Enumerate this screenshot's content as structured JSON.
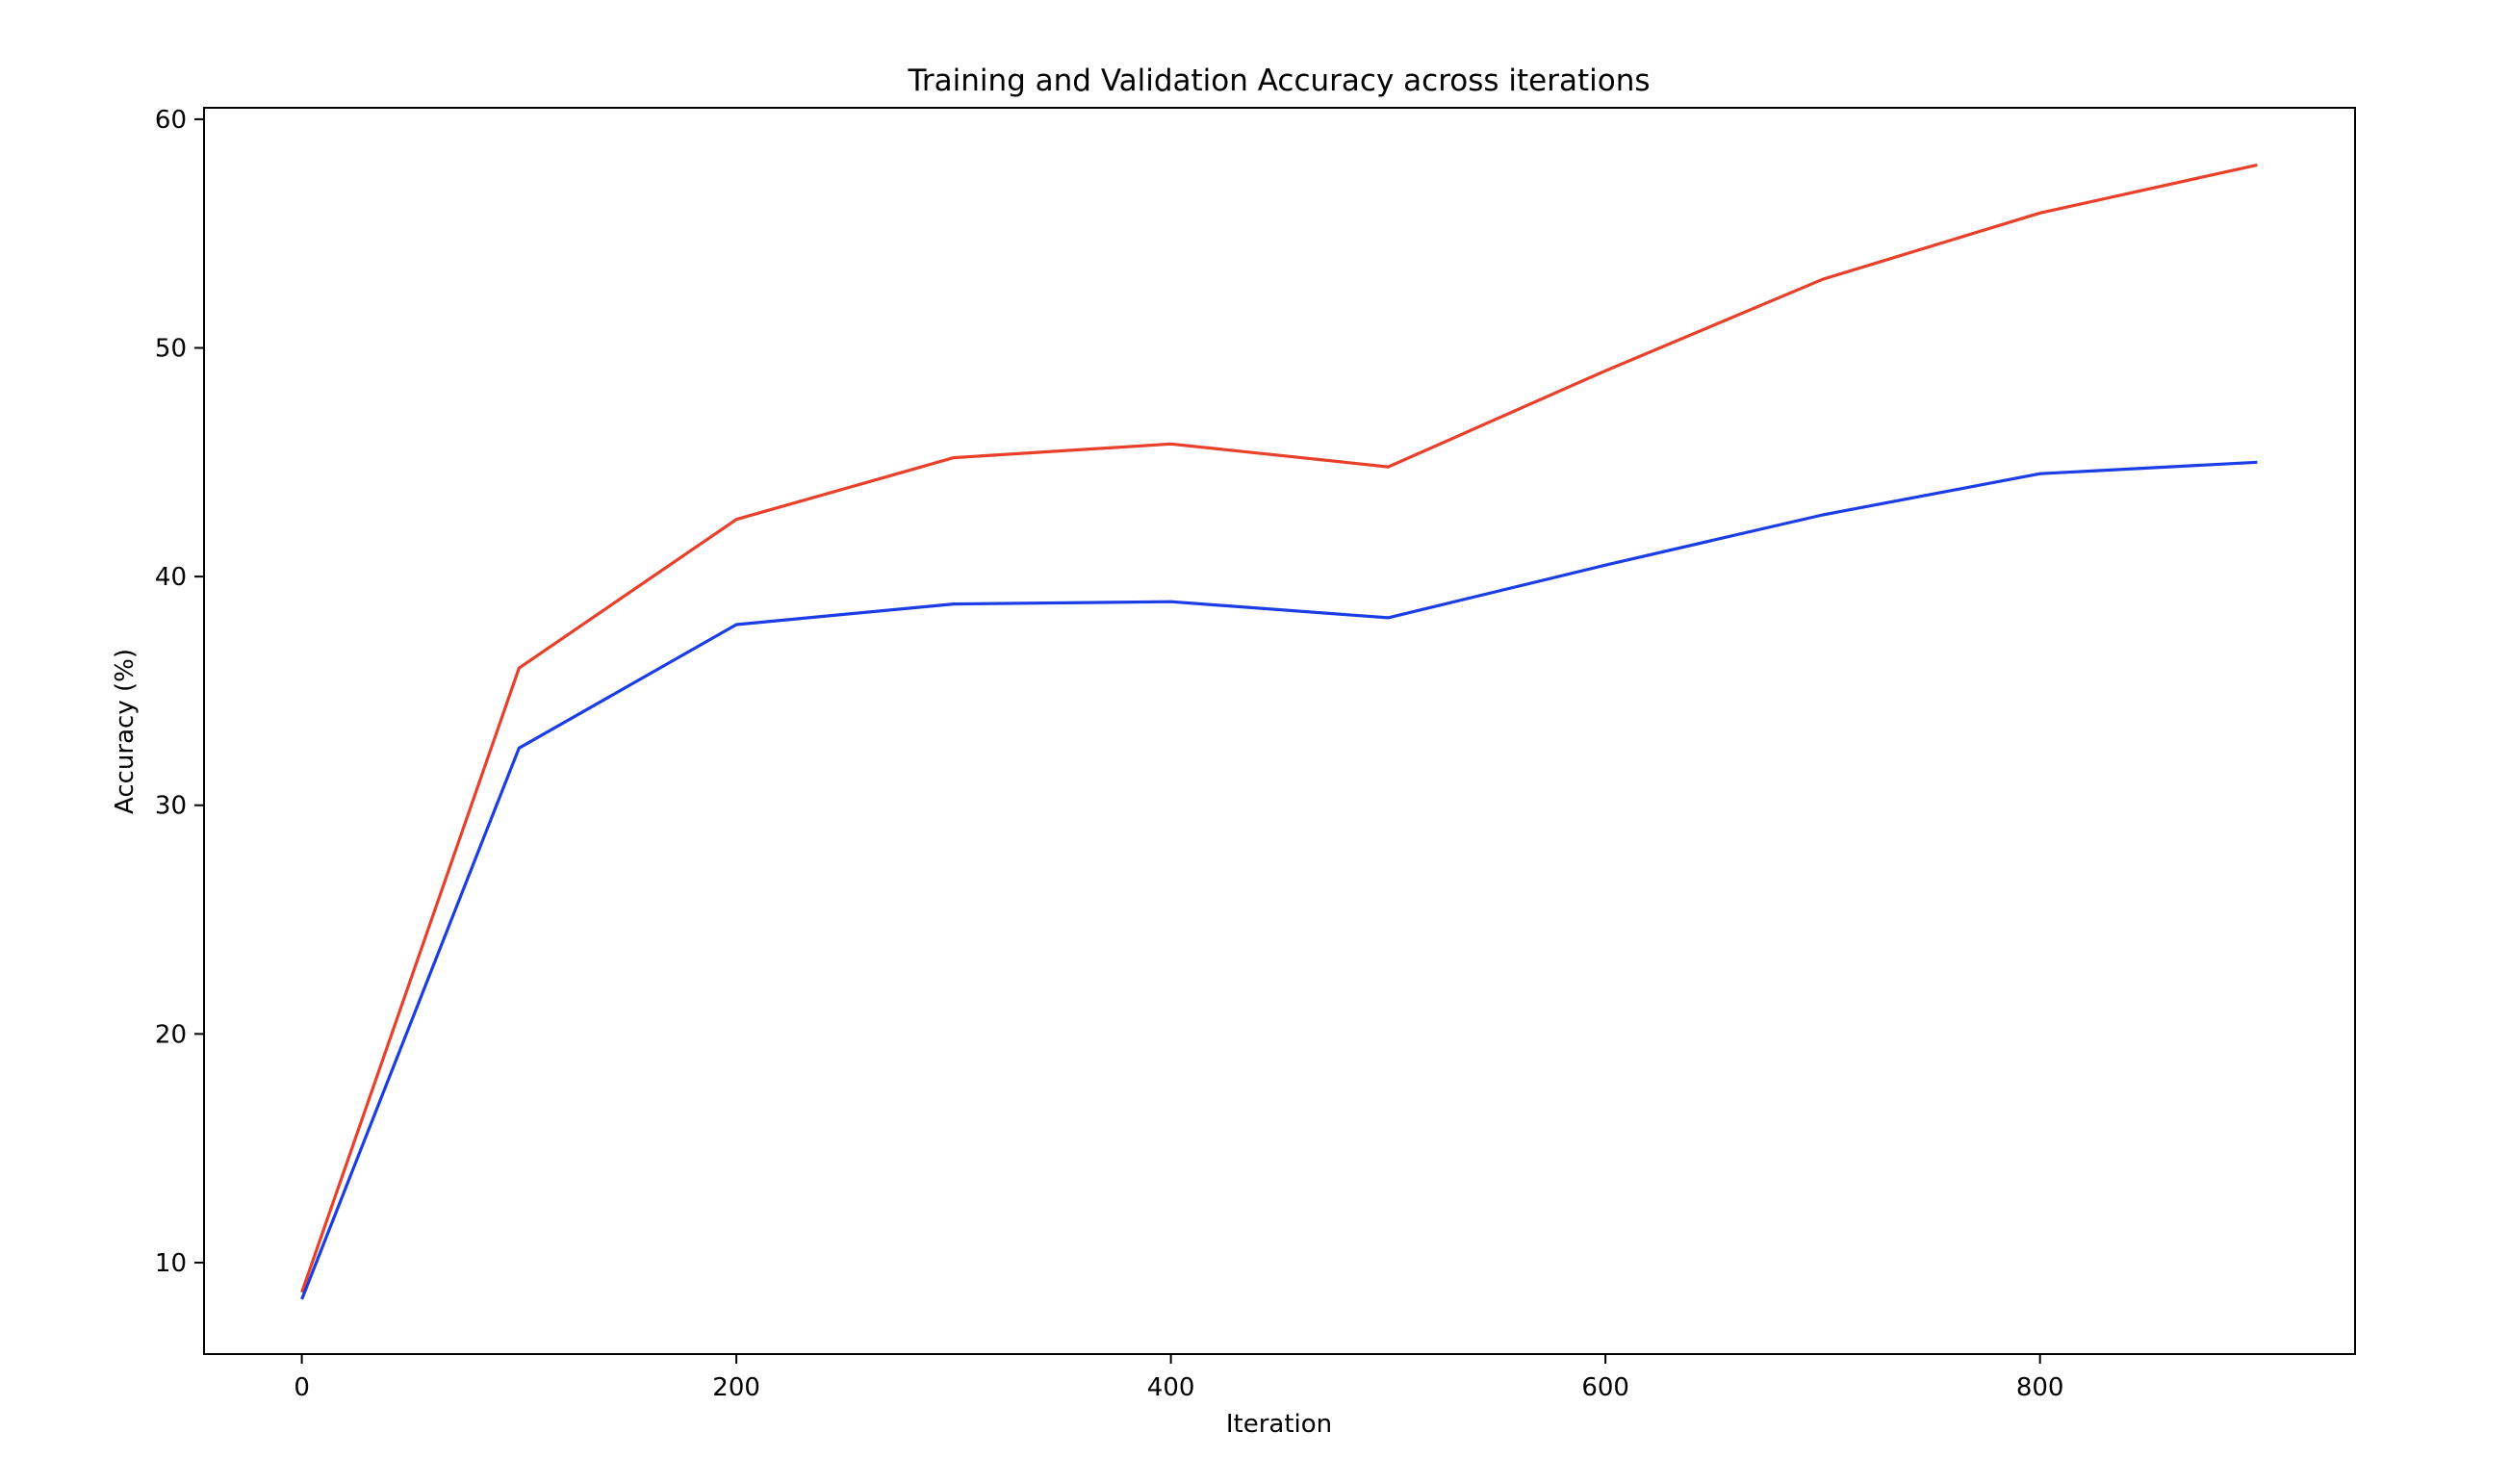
{
  "chart_data": {
    "type": "line",
    "title": "Training and Validation Accuracy across iterations",
    "xlabel": "Iteration",
    "ylabel": "Accuracy (%)",
    "xlim": [
      -45,
      945
    ],
    "ylim": [
      6.0,
      60.5
    ],
    "xticks": [
      0,
      200,
      400,
      600,
      800
    ],
    "yticks": [
      10,
      20,
      30,
      40,
      50,
      60
    ],
    "grid": false,
    "legend": "none",
    "x": [
      0,
      100,
      200,
      300,
      400,
      500,
      600,
      700,
      800,
      900
    ],
    "series": [
      {
        "color": "#e8402a",
        "values": [
          8.7,
          36.0,
          42.5,
          45.2,
          45.8,
          44.8,
          49.0,
          53.0,
          55.9,
          58.0
        ]
      },
      {
        "color": "#1b3de6",
        "values": [
          8.4,
          32.5,
          37.9,
          38.8,
          38.9,
          38.2,
          40.5,
          42.7,
          44.5,
          45.0
        ]
      }
    ]
  }
}
